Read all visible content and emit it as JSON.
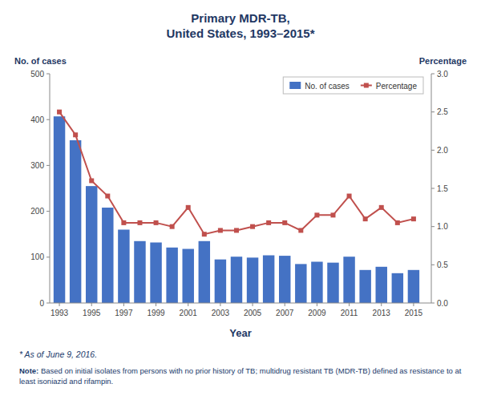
{
  "chart_data": {
    "type": "bar",
    "title": "Primary MDR-TB,\nUnited States, 1993–2015*",
    "x_label": "Year",
    "y_label": "No. of cases",
    "y2_label": "Percentage",
    "x": [
      1993,
      1994,
      1995,
      1996,
      1997,
      1998,
      1999,
      2000,
      2001,
      2002,
      2003,
      2004,
      2005,
      2006,
      2007,
      2008,
      2009,
      2010,
      2011,
      2012,
      2013,
      2014,
      2015
    ],
    "series": [
      {
        "name": "No. of cases",
        "type": "bar",
        "color": "#4472C4",
        "values": [
          407,
          355,
          255,
          208,
          160,
          135,
          132,
          121,
          118,
          135,
          95,
          101,
          99,
          104,
          103,
          85,
          90,
          88,
          101,
          72,
          79,
          65,
          72
        ]
      },
      {
        "name": "Percentage",
        "type": "line",
        "axis": "y2",
        "color": "#C0504D",
        "marker": "square",
        "values": [
          2.5,
          2.2,
          1.6,
          1.4,
          1.05,
          1.05,
          1.05,
          1.0,
          1.25,
          0.9,
          0.95,
          0.95,
          1.0,
          1.05,
          1.05,
          0.95,
          1.15,
          1.15,
          1.4,
          1.1,
          1.25,
          1.05,
          1.1
        ]
      }
    ],
    "xlim": [
      1992.4,
      2016.1
    ],
    "xticks": [
      1993,
      1995,
      1997,
      1999,
      2001,
      2003,
      2005,
      2007,
      2009,
      2011,
      2013,
      2015
    ],
    "ylim": [
      0,
      500
    ],
    "yticks": [
      0,
      100,
      200,
      300,
      400,
      500
    ],
    "y2lim": [
      0.0,
      3.0
    ],
    "y2ticks": [
      {
        "value": 0.0,
        "label": "0.0"
      },
      0.5,
      {
        "value": 1.0,
        "label": "1.0"
      },
      1.5,
      {
        "value": 2.0,
        "label": "2.0"
      },
      2.5,
      {
        "value": 3.0,
        "label": "3.0"
      }
    ],
    "legend": "upper right",
    "grid": false,
    "annotations": [
      "* As of June 9, 2016.",
      "Note:",
      " Based on initial isolates from persons with no prior history of TB; multidrug resistant TB (MDR-TB) defined as resistance to at\nleast isoniazid and rifampin."
    ]
  }
}
